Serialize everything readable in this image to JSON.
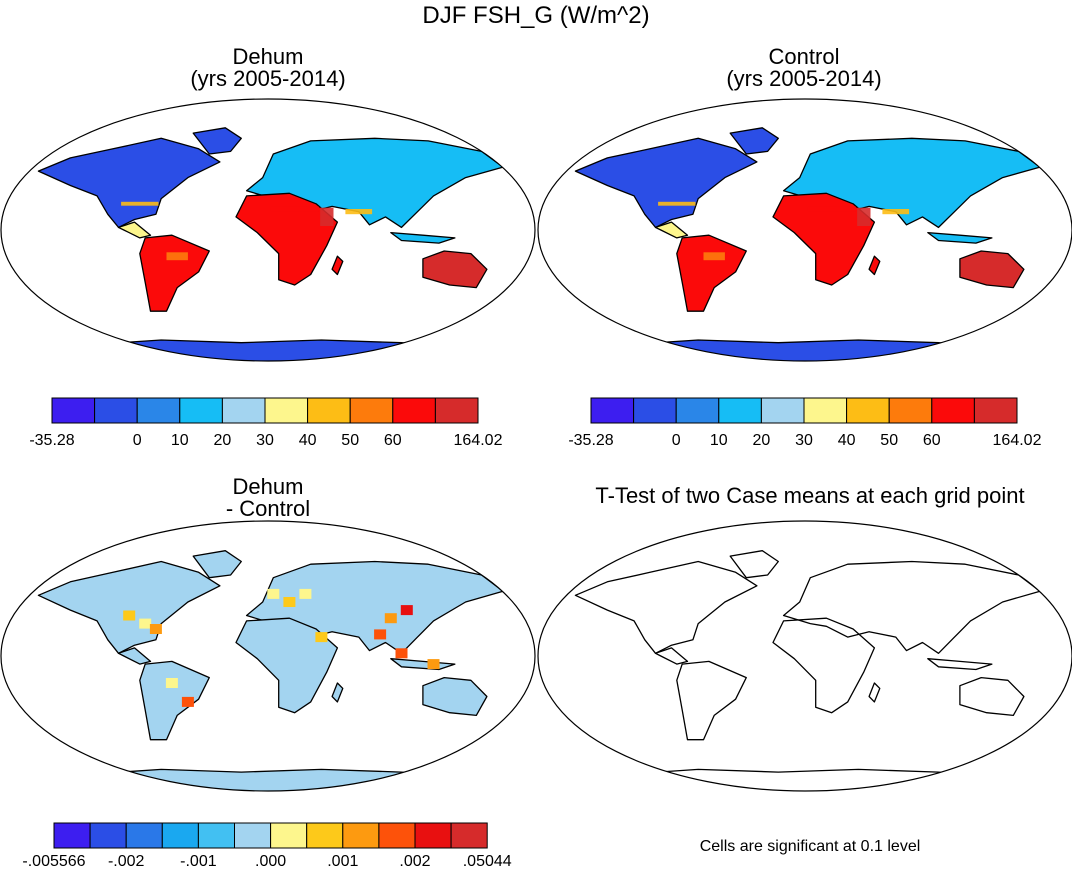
{
  "main_title": "DJF FSH_G (W/m^2)",
  "panels": {
    "dehum": {
      "title": "Dehum",
      "subtitle": "(yrs 2005-2014)"
    },
    "control": {
      "title": "Control",
      "subtitle": "(yrs 2005-2014)"
    },
    "diff": {
      "title": "Dehum",
      "subtitle": "- Control"
    },
    "ttest": {
      "title": "T-Test of two Case means at each grid point",
      "note": "Cells are significant at 0.1 level"
    }
  },
  "chart_data": [
    {
      "type": "heatmap",
      "name": "dehum",
      "title": "Dehum (yrs 2005-2014)",
      "projection": "Robinson",
      "colorbar": {
        "colors": [
          "#3d1ef0",
          "#2b4ee6",
          "#2a86e8",
          "#16bdf5",
          "#a3d4f0",
          "#fdf68d",
          "#fdbd15",
          "#fd7b0c",
          "#fb0a0a",
          "#d62b2b"
        ],
        "labels": [
          "-35.28",
          "",
          "0",
          "10",
          "20",
          "30",
          "40",
          "50",
          "60",
          "",
          "164.02"
        ]
      }
    },
    {
      "type": "heatmap",
      "name": "control",
      "title": "Control (yrs 2005-2014)",
      "projection": "Robinson",
      "colorbar": {
        "colors": [
          "#3d1ef0",
          "#2b4ee6",
          "#2a86e8",
          "#16bdf5",
          "#a3d4f0",
          "#fdf68d",
          "#fdbd15",
          "#fd7b0c",
          "#fb0a0a",
          "#d62b2b"
        ],
        "labels": [
          "-35.28",
          "",
          "0",
          "10",
          "20",
          "30",
          "40",
          "50",
          "60",
          "",
          "164.02"
        ]
      }
    },
    {
      "type": "heatmap",
      "name": "difference",
      "title": "Dehum - Control",
      "projection": "Robinson",
      "colorbar": {
        "colors": [
          "#3d1ef0",
          "#2b4ee6",
          "#2a78e8",
          "#1aa8f0",
          "#42c0f2",
          "#a3d4f0",
          "#fdf68d",
          "#fdc91a",
          "#fd9a10",
          "#fd520a",
          "#e81010",
          "#d62b2b"
        ],
        "labels": [
          "-.005566",
          "",
          "-.002",
          "",
          "-.001",
          "",
          ".000",
          "",
          ".001",
          "",
          ".002",
          "",
          ".05044"
        ]
      }
    },
    {
      "type": "heatmap",
      "name": "ttest",
      "title": "T-Test of two Case means at each grid point",
      "projection": "Robinson",
      "note": "Cells are significant at 0.1 level",
      "colorbar": null
    }
  ]
}
